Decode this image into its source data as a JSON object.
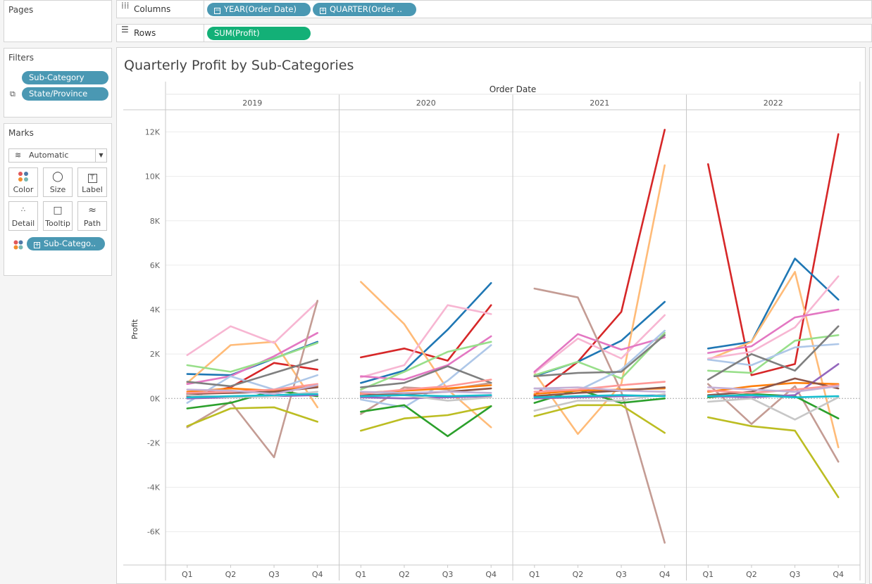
{
  "left_panel": {
    "pages": {
      "title": "Pages"
    },
    "filters": {
      "title": "Filters",
      "items": [
        "Sub-Category",
        "State/Province"
      ]
    },
    "marks": {
      "title": "Marks",
      "mark_type": "Automatic",
      "buttons": [
        "Color",
        "Size",
        "Label",
        "Detail",
        "Tooltip",
        "Path"
      ],
      "color_pill": "Sub-Catego.."
    }
  },
  "shelves": {
    "columns": {
      "label": "Columns",
      "pills": [
        "YEAR(Order Date)",
        "QUARTER(Order .."
      ]
    },
    "rows": {
      "label": "Rows",
      "pills": [
        "SUM(Profit)"
      ]
    }
  },
  "worksheet": {
    "title": "Quarterly Profit by Sub-Categories"
  },
  "chart_data": {
    "type": "line",
    "title": "Quarterly Profit by Sub-Categories",
    "column_header": "Order Date",
    "panels": [
      "2019",
      "2020",
      "2021",
      "2022"
    ],
    "quarters": [
      "Q1",
      "Q2",
      "Q3",
      "Q4"
    ],
    "ylabel": "Profit",
    "ylim": [
      -7500,
      13000
    ],
    "yticks": [
      -6000,
      -4000,
      -2000,
      0,
      2000,
      4000,
      6000,
      8000,
      10000,
      12000
    ],
    "ytick_labels": [
      "-6K",
      "-4K",
      "-2K",
      "0K",
      "2K",
      "4K",
      "6K",
      "8K",
      "10K",
      "12K"
    ],
    "zero_line": true,
    "series": [
      {
        "color": "#d62728",
        "values": [
          [
            100,
            500,
            1600,
            1300
          ],
          [
            1850,
            2250,
            1700,
            4200
          ],
          [
            150,
            1650,
            3900,
            12100
          ],
          [
            10550,
            1050,
            1550,
            11900
          ]
        ]
      },
      {
        "color": "#1f77b4",
        "values": [
          [
            1100,
            1050,
            1800,
            2550
          ],
          [
            700,
            1250,
            3100,
            5200
          ],
          [
            1000,
            1650,
            2600,
            4350
          ],
          [
            2250,
            2550,
            6300,
            4450
          ]
        ]
      },
      {
        "color": "#ffbb78",
        "values": [
          [
            700,
            2400,
            2550,
            -400
          ],
          [
            5250,
            3350,
            400,
            -1300
          ],
          [
            1150,
            -1600,
            650,
            10500
          ],
          [
            1750,
            2550,
            5700,
            -2200
          ]
        ]
      },
      {
        "color": "#f7b6d2",
        "values": [
          [
            1950,
            3250,
            2500,
            4350
          ],
          [
            950,
            1500,
            4200,
            3800
          ],
          [
            1150,
            2700,
            1800,
            3750
          ],
          [
            1800,
            2100,
            3200,
            5500
          ]
        ]
      },
      {
        "color": "#e377c2",
        "values": [
          [
            650,
            1000,
            1900,
            2950
          ],
          [
            1000,
            850,
            1500,
            2800
          ],
          [
            1200,
            2900,
            2200,
            2750
          ],
          [
            2050,
            2350,
            3650,
            4000
          ]
        ]
      },
      {
        "color": "#c49c94",
        "values": [
          [
            -1300,
            -150,
            -2650,
            4400
          ],
          [
            -700,
            500,
            400,
            700
          ],
          [
            4950,
            4550,
            300,
            -6500
          ],
          [
            650,
            -1150,
            550,
            -2850
          ]
        ]
      },
      {
        "color": "#98df8a",
        "values": [
          [
            1500,
            1200,
            1800,
            2500
          ],
          [
            400,
            1200,
            2100,
            2550
          ],
          [
            1050,
            1650,
            900,
            2950
          ],
          [
            1250,
            1150,
            2600,
            2850
          ]
        ]
      },
      {
        "color": "#aec7e8",
        "values": [
          [
            -200,
            1000,
            400,
            1050
          ],
          [
            -50,
            -400,
            800,
            2400
          ],
          [
            450,
            350,
            1300,
            3050
          ],
          [
            1750,
            1500,
            2300,
            2450
          ]
        ]
      },
      {
        "color": "#7f7f7f",
        "values": [
          [
            750,
            550,
            1150,
            1750
          ],
          [
            500,
            700,
            1450,
            700
          ],
          [
            1000,
            1150,
            1200,
            2850
          ],
          [
            850,
            2000,
            1250,
            3250
          ]
        ]
      },
      {
        "color": "#bcbd22",
        "values": [
          [
            -1250,
            -450,
            -400,
            -1050
          ],
          [
            -1450,
            -900,
            -750,
            -350
          ],
          [
            -800,
            -300,
            -300,
            -1550
          ],
          [
            -850,
            -1250,
            -1450,
            -4450
          ]
        ]
      },
      {
        "color": "#2ca02c",
        "values": [
          [
            -450,
            -200,
            350,
            100
          ],
          [
            -600,
            -300,
            -1700,
            -350
          ],
          [
            -200,
            400,
            -200,
            0
          ],
          [
            50,
            200,
            100,
            -900
          ]
        ]
      },
      {
        "color": "#ff7f0e",
        "values": [
          [
            300,
            450,
            350,
            550
          ],
          [
            250,
            350,
            450,
            600
          ],
          [
            200,
            350,
            400,
            450
          ],
          [
            300,
            550,
            700,
            650
          ]
        ]
      },
      {
        "color": "#9467bd",
        "values": [
          [
            0,
            50,
            100,
            150
          ],
          [
            50,
            0,
            50,
            100
          ],
          [
            0,
            50,
            100,
            150
          ],
          [
            100,
            50,
            150,
            1550
          ]
        ]
      },
      {
        "color": "#8c564b",
        "values": [
          [
            200,
            250,
            300,
            500
          ],
          [
            150,
            200,
            300,
            450
          ],
          [
            100,
            250,
            350,
            500
          ],
          [
            150,
            300,
            900,
            450
          ]
        ]
      },
      {
        "color": "#c7c7c7",
        "values": [
          [
            150,
            50,
            100,
            300
          ],
          [
            100,
            150,
            -100,
            50
          ],
          [
            -550,
            -100,
            -100,
            200
          ],
          [
            -150,
            0,
            -950,
            50
          ]
        ]
      },
      {
        "color": "#ff9896",
        "values": [
          [
            250,
            300,
            400,
            650
          ],
          [
            200,
            400,
            550,
            850
          ],
          [
            300,
            400,
            600,
            750
          ],
          [
            350,
            250,
            400,
            600
          ]
        ]
      },
      {
        "color": "#17becf",
        "values": [
          [
            50,
            100,
            150,
            200
          ],
          [
            100,
            150,
            100,
            150
          ],
          [
            50,
            100,
            150,
            100
          ],
          [
            100,
            150,
            50,
            100
          ]
        ]
      },
      {
        "color": "#c5b0d5",
        "values": [
          [
            400,
            350,
            200,
            600
          ],
          [
            300,
            250,
            300,
            250
          ],
          [
            450,
            500,
            350,
            300
          ],
          [
            500,
            400,
            300,
            550
          ]
        ]
      }
    ]
  }
}
